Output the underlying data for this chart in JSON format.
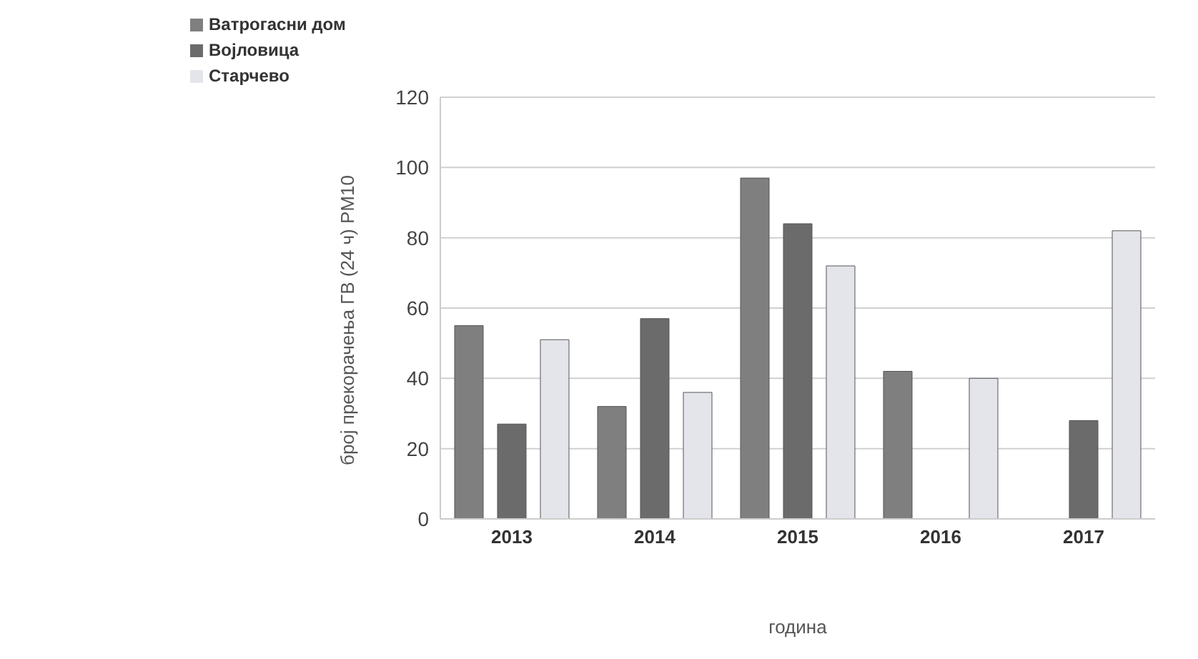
{
  "chart_data": {
    "type": "bar",
    "xlabel": "година",
    "ylabel": "број прекорачења ГВ (24 ч) PM10",
    "categories": [
      "2013",
      "2014",
      "2015",
      "2016",
      "2017"
    ],
    "series": [
      {
        "name": "Ватрогасни дом",
        "color": "#7f7f7f",
        "values": [
          55,
          32,
          97,
          42,
          0
        ]
      },
      {
        "name": "Војловица",
        "color": "#6b6b6b",
        "values": [
          27,
          57,
          84,
          0,
          28
        ]
      },
      {
        "name": "Старчево",
        "color": "#e3e5ea",
        "values": [
          51,
          36,
          72,
          40,
          82
        ]
      }
    ],
    "ylim": [
      0,
      120
    ],
    "yticks": [
      0,
      20,
      40,
      60,
      80,
      100,
      120
    ],
    "grid": "y",
    "legend": "top left"
  }
}
